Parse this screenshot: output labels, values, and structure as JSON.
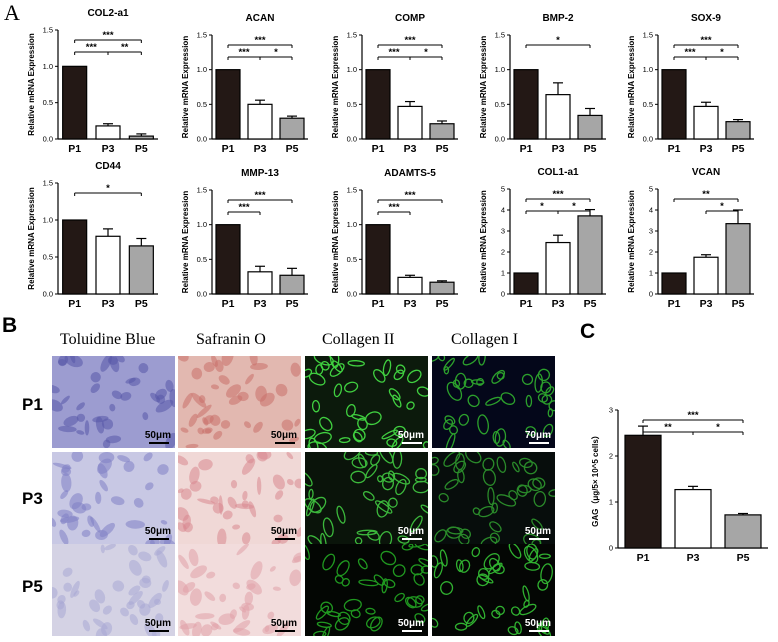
{
  "panel_labels": {
    "a": "A",
    "b": "B",
    "c": "C"
  },
  "ylabel_mrna": "Relative mRNA Expression",
  "microscopy": {
    "column_titles": [
      "Toluidine Blue",
      "Safranin O",
      "Collagen II",
      "Collagen I"
    ],
    "row_labels": [
      "P1",
      "P3",
      "P5"
    ],
    "scale_bars": [
      [
        "50μm",
        "50μm",
        "50μm",
        "70μm"
      ],
      [
        "50μm",
        "50μm",
        "50μm",
        "50μm"
      ],
      [
        "50μm",
        "50μm",
        "50μm",
        "50μm"
      ]
    ]
  },
  "chart_data": [
    {
      "type": "bar",
      "title": "COL2-a1",
      "categories": [
        "P1",
        "P3",
        "P5"
      ],
      "values": [
        1.0,
        0.18,
        0.04
      ],
      "errors": [
        0,
        0.03,
        0.03
      ],
      "ylabel": "Relative mRNA Expression",
      "ylim": [
        0,
        1.5
      ],
      "yticks": [
        "0.0",
        "0.5",
        "1.0",
        "1.5"
      ],
      "significance": [
        {
          "from": 0,
          "to": 2,
          "label": "***"
        },
        {
          "from": 0,
          "to": 1,
          "label": "***"
        },
        {
          "from": 1,
          "to": 2,
          "label": "**"
        }
      ]
    },
    {
      "type": "bar",
      "title": "ACAN",
      "categories": [
        "P1",
        "P3",
        "P5"
      ],
      "values": [
        1.0,
        0.5,
        0.3
      ],
      "errors": [
        0,
        0.06,
        0.03
      ],
      "ylabel": "Relative mRNA Expression",
      "ylim": [
        0,
        1.5
      ],
      "yticks": [
        "0.0",
        "0.5",
        "1.0",
        "1.5"
      ],
      "significance": [
        {
          "from": 0,
          "to": 2,
          "label": "***"
        },
        {
          "from": 0,
          "to": 1,
          "label": "***"
        },
        {
          "from": 1,
          "to": 2,
          "label": "*"
        }
      ]
    },
    {
      "type": "bar",
      "title": "COMP",
      "categories": [
        "P1",
        "P3",
        "P5"
      ],
      "values": [
        1.0,
        0.47,
        0.22
      ],
      "errors": [
        0,
        0.07,
        0.04
      ],
      "ylabel": "Relative mRNA Expression",
      "ylim": [
        0,
        1.5
      ],
      "yticks": [
        "0.0",
        "0.5",
        "1.0",
        "1.5"
      ],
      "significance": [
        {
          "from": 0,
          "to": 2,
          "label": "***"
        },
        {
          "from": 0,
          "to": 1,
          "label": "***"
        },
        {
          "from": 1,
          "to": 2,
          "label": "*"
        }
      ]
    },
    {
      "type": "bar",
      "title": "BMP-2",
      "categories": [
        "P1",
        "P3",
        "P5"
      ],
      "values": [
        1.0,
        0.64,
        0.34
      ],
      "errors": [
        0,
        0.17,
        0.1
      ],
      "ylabel": "Relative mRNA Expression",
      "ylim": [
        0,
        1.5
      ],
      "yticks": [
        "0.0",
        "0.5",
        "1.0",
        "1.5"
      ],
      "significance": [
        {
          "from": 0,
          "to": 2,
          "label": "*"
        }
      ]
    },
    {
      "type": "bar",
      "title": "SOX-9",
      "categories": [
        "P1",
        "P3",
        "P5"
      ],
      "values": [
        1.0,
        0.47,
        0.25
      ],
      "errors": [
        0,
        0.06,
        0.03
      ],
      "ylabel": "Relative mRNA Expression",
      "ylim": [
        0,
        1.5
      ],
      "yticks": [
        "0.0",
        "0.5",
        "1.0",
        "1.5"
      ],
      "significance": [
        {
          "from": 0,
          "to": 2,
          "label": "***"
        },
        {
          "from": 0,
          "to": 1,
          "label": "***"
        },
        {
          "from": 1,
          "to": 2,
          "label": "*"
        }
      ]
    },
    {
      "type": "bar",
      "title": "CD44",
      "categories": [
        "P1",
        "P3",
        "P5"
      ],
      "values": [
        1.0,
        0.78,
        0.65
      ],
      "errors": [
        0,
        0.1,
        0.1
      ],
      "ylabel": "Relative mRNA Expression",
      "ylim": [
        0,
        1.5
      ],
      "yticks": [
        "0.0",
        "0.5",
        "1.0",
        "1.5"
      ],
      "significance": [
        {
          "from": 0,
          "to": 2,
          "label": "*"
        }
      ]
    },
    {
      "type": "bar",
      "title": "MMP-13",
      "categories": [
        "P1",
        "P3",
        "P5"
      ],
      "values": [
        1.0,
        0.32,
        0.27
      ],
      "errors": [
        0,
        0.08,
        0.1
      ],
      "ylabel": "Relative mRNA Expression",
      "ylim": [
        0,
        1.5
      ],
      "yticks": [
        "0.0",
        "0.5",
        "1.0",
        "1.5"
      ],
      "significance": [
        {
          "from": 0,
          "to": 2,
          "label": "***"
        },
        {
          "from": 0,
          "to": 1,
          "label": "***"
        }
      ]
    },
    {
      "type": "bar",
      "title": "ADAMTS-5",
      "categories": [
        "P1",
        "P3",
        "P5"
      ],
      "values": [
        1.0,
        0.24,
        0.17
      ],
      "errors": [
        0,
        0.03,
        0.02
      ],
      "ylabel": "Relative mRNA Expression",
      "ylim": [
        0,
        1.5
      ],
      "yticks": [
        "0.0",
        "0.5",
        "1.0",
        "1.5"
      ],
      "significance": [
        {
          "from": 0,
          "to": 2,
          "label": "***"
        },
        {
          "from": 0,
          "to": 1,
          "label": "***"
        }
      ]
    },
    {
      "type": "bar",
      "title": "COL1-a1",
      "categories": [
        "P1",
        "P3",
        "P5"
      ],
      "values": [
        1.0,
        2.45,
        3.72
      ],
      "errors": [
        0,
        0.35,
        0.3
      ],
      "ylabel": "Relative mRNA Expression",
      "ylim": [
        0,
        5
      ],
      "yticks": [
        "0",
        "1",
        "2",
        "3",
        "4",
        "5"
      ],
      "significance": [
        {
          "from": 0,
          "to": 2,
          "label": "***"
        },
        {
          "from": 0,
          "to": 1,
          "label": "*"
        },
        {
          "from": 1,
          "to": 2,
          "label": "*"
        }
      ]
    },
    {
      "type": "bar",
      "title": "VCAN",
      "categories": [
        "P1",
        "P3",
        "P5"
      ],
      "values": [
        1.0,
        1.75,
        3.35
      ],
      "errors": [
        0,
        0.12,
        0.65
      ],
      "ylabel": "Relative mRNA Expression",
      "ylim": [
        0,
        5
      ],
      "yticks": [
        "0",
        "1",
        "2",
        "3",
        "4",
        "5"
      ],
      "significance": [
        {
          "from": 0,
          "to": 2,
          "label": "**"
        },
        {
          "from": 1,
          "to": 2,
          "label": "*"
        }
      ]
    },
    {
      "type": "bar",
      "title": "",
      "categories": [
        "P1",
        "P3",
        "P5"
      ],
      "values": [
        2.45,
        1.27,
        0.72
      ],
      "errors": [
        0.2,
        0.07,
        0.03
      ],
      "ylabel": "GAG（μg/5× 10^5 cells）",
      "ylim": [
        0,
        3
      ],
      "yticks": [
        "0",
        "1",
        "2",
        "3"
      ],
      "significance": [
        {
          "from": 0,
          "to": 2,
          "label": "***"
        },
        {
          "from": 0,
          "to": 1,
          "label": "**"
        },
        {
          "from": 1,
          "to": 2,
          "label": "*"
        }
      ]
    }
  ],
  "colors": {
    "p1_fill": "#231815",
    "p3_fill": "#ffffff",
    "p5_fill": "#a6a6a6",
    "axis": "#000000"
  }
}
